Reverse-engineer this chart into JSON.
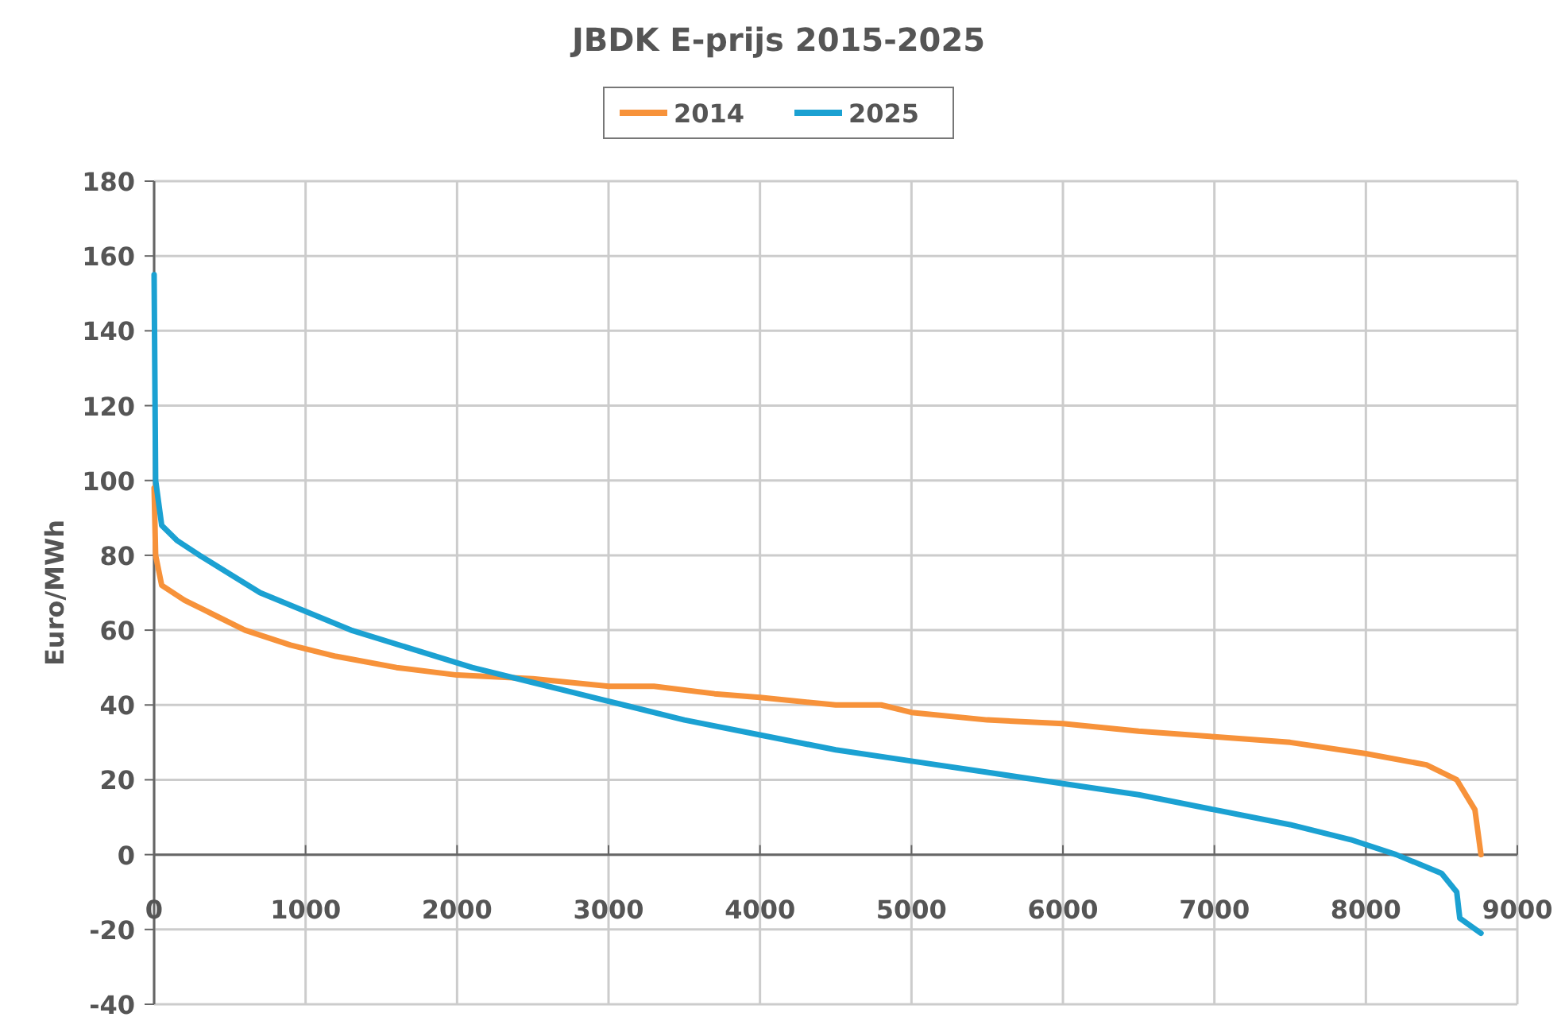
{
  "chart_data": {
    "type": "line",
    "title": "JBDK E-prijs 2015-2025",
    "ylabel": "Euro/MWh",
    "xlim": [
      0,
      9000
    ],
    "ylim": [
      -40,
      180
    ],
    "xticks": [
      0,
      1000,
      2000,
      3000,
      4000,
      5000,
      6000,
      7000,
      8000,
      9000
    ],
    "yticks": [
      -40,
      -20,
      0,
      20,
      40,
      60,
      80,
      100,
      120,
      140,
      160,
      180
    ],
    "grid": true,
    "legend": "top",
    "marker": "none",
    "line_style": "solid",
    "series": [
      {
        "name": "2014",
        "color": "#f7923a",
        "x": [
          0,
          10,
          50,
          200,
          400,
          600,
          900,
          1200,
          1600,
          2000,
          2500,
          3000,
          3300,
          3700,
          4000,
          4500,
          4800,
          5000,
          5500,
          6000,
          6500,
          7000,
          7500,
          8000,
          8400,
          8600,
          8720,
          8760
        ],
        "values": [
          98,
          80,
          72,
          68,
          64,
          60,
          56,
          53,
          50,
          48,
          47,
          45,
          45,
          43,
          42,
          40,
          40,
          38,
          36,
          35,
          33,
          31.5,
          30,
          27,
          24,
          20,
          12,
          0
        ]
      },
      {
        "name": "2025",
        "color": "#1ba1d2",
        "x": [
          0,
          10,
          50,
          150,
          300,
          500,
          700,
          1000,
          1300,
          1700,
          2100,
          2500,
          2800,
          3100,
          3500,
          4000,
          4500,
          5000,
          5500,
          6000,
          6500,
          7000,
          7500,
          7900,
          8200,
          8500,
          8600,
          8620,
          8760
        ],
        "values": [
          155,
          100,
          88,
          84,
          80,
          75,
          70,
          65,
          60,
          55,
          50,
          46,
          43,
          40,
          36,
          32,
          28,
          25,
          22,
          19,
          16,
          12,
          8,
          4,
          0,
          -5,
          -10,
          -17,
          -21
        ]
      }
    ]
  }
}
